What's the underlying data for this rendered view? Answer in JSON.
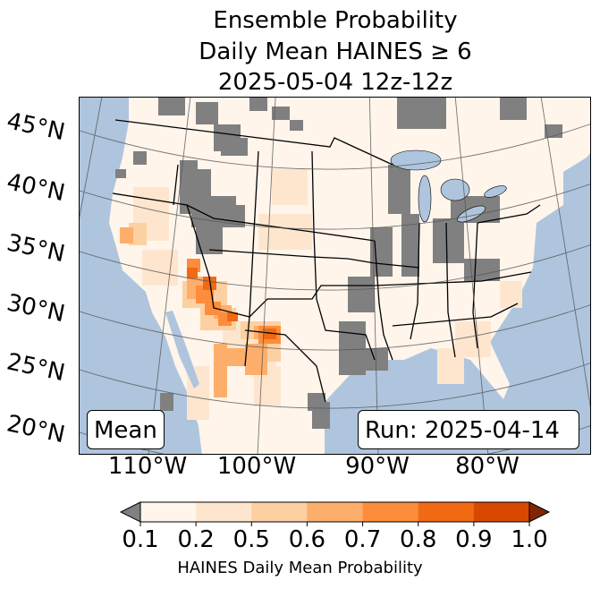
{
  "title": {
    "line1": "Ensemble Probability",
    "line2": "Daily Mean HAINES ≥ 6",
    "line3": "2025-05-04 12z-12z"
  },
  "map": {
    "lat_labels": [
      "45°N",
      "40°N",
      "35°N",
      "30°N",
      "25°N",
      "20°N"
    ],
    "lon_labels": [
      "110°W",
      "100°W",
      "90°W",
      "80°W"
    ],
    "stat_label": "Mean",
    "run_label": "Run: 2025-04-14",
    "colors": {
      "ocean": "#afc5de",
      "land": "#fff5eb",
      "below_min": "#808080",
      "lake": "#afc5de"
    }
  },
  "colorbar": {
    "ticks": [
      "0.1",
      "0.2",
      "0.5",
      "0.6",
      "0.7",
      "0.8",
      "0.9",
      "1.0"
    ],
    "colors": [
      "#fff5eb",
      "#fee6ce",
      "#fdd0a2",
      "#fdae6b",
      "#fd8d3c",
      "#f16913",
      "#d94801"
    ],
    "under_color": "#808080",
    "over_color": "#7f2704",
    "label": "HAINES Daily Mean Probability"
  }
}
